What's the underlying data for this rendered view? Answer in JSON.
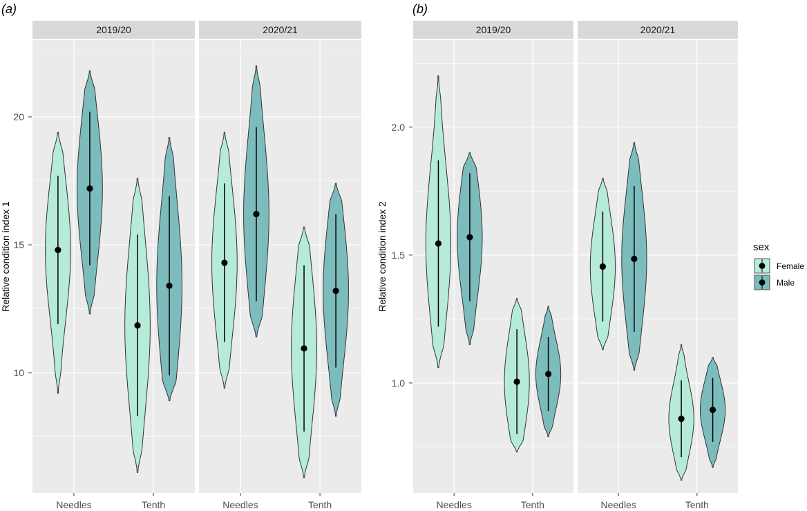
{
  "chart_data": [
    {
      "type": "violin",
      "tag": "(a)",
      "ylabel": "Relative condition index 1",
      "facets": [
        "2019/20",
        "2020/21"
      ],
      "categories": [
        "Needles",
        "Tenth"
      ],
      "groups": [
        "Female",
        "Male"
      ],
      "y_ticks": [
        10,
        15,
        20
      ],
      "ylim": [
        5.3,
        23.0
      ],
      "series": [
        {
          "facet": "2019/20",
          "category": "Needles",
          "group": "Female",
          "mean": 14.8,
          "lo": 11.9,
          "hi": 17.7,
          "min": 9.2,
          "max": 19.4
        },
        {
          "facet": "2019/20",
          "category": "Needles",
          "group": "Male",
          "mean": 17.2,
          "lo": 14.2,
          "hi": 20.2,
          "min": 12.3,
          "max": 21.8
        },
        {
          "facet": "2019/20",
          "category": "Tenth",
          "group": "Female",
          "mean": 11.85,
          "lo": 8.3,
          "hi": 15.4,
          "min": 6.1,
          "max": 17.6
        },
        {
          "facet": "2019/20",
          "category": "Tenth",
          "group": "Male",
          "mean": 13.4,
          "lo": 9.9,
          "hi": 16.9,
          "min": 8.9,
          "max": 19.2
        },
        {
          "facet": "2020/21",
          "category": "Needles",
          "group": "Female",
          "mean": 14.3,
          "lo": 11.2,
          "hi": 17.4,
          "min": 9.4,
          "max": 19.4
        },
        {
          "facet": "2020/21",
          "category": "Needles",
          "group": "Male",
          "mean": 16.2,
          "lo": 12.8,
          "hi": 19.6,
          "min": 11.4,
          "max": 22.0
        },
        {
          "facet": "2020/21",
          "category": "Tenth",
          "group": "Female",
          "mean": 10.95,
          "lo": 7.7,
          "hi": 14.2,
          "min": 5.9,
          "max": 15.7
        },
        {
          "facet": "2020/21",
          "category": "Tenth",
          "group": "Male",
          "mean": 13.2,
          "lo": 10.2,
          "hi": 16.2,
          "min": 8.3,
          "max": 17.4
        }
      ]
    },
    {
      "type": "violin",
      "tag": "(b)",
      "ylabel": "Relative condition index 2",
      "facets": [
        "2019/20",
        "2020/21"
      ],
      "categories": [
        "Needles",
        "Tenth"
      ],
      "groups": [
        "Female",
        "Male"
      ],
      "y_ticks": [
        "1.0",
        "1.5",
        "2.0"
      ],
      "ylim": [
        0.57,
        2.34
      ],
      "series": [
        {
          "facet": "2019/20",
          "category": "Needles",
          "group": "Female",
          "mean": 1.545,
          "lo": 1.22,
          "hi": 1.87,
          "min": 1.06,
          "max": 2.2
        },
        {
          "facet": "2019/20",
          "category": "Needles",
          "group": "Male",
          "mean": 1.57,
          "lo": 1.32,
          "hi": 1.82,
          "min": 1.15,
          "max": 1.9
        },
        {
          "facet": "2019/20",
          "category": "Tenth",
          "group": "Female",
          "mean": 1.005,
          "lo": 0.8,
          "hi": 1.21,
          "min": 0.73,
          "max": 1.33
        },
        {
          "facet": "2019/20",
          "category": "Tenth",
          "group": "Male",
          "mean": 1.035,
          "lo": 0.89,
          "hi": 1.18,
          "min": 0.79,
          "max": 1.3
        },
        {
          "facet": "2020/21",
          "category": "Needles",
          "group": "Female",
          "mean": 1.455,
          "lo": 1.24,
          "hi": 1.67,
          "min": 1.13,
          "max": 1.8
        },
        {
          "facet": "2020/21",
          "category": "Needles",
          "group": "Male",
          "mean": 1.485,
          "lo": 1.2,
          "hi": 1.77,
          "min": 1.05,
          "max": 1.94
        },
        {
          "facet": "2020/21",
          "category": "Tenth",
          "group": "Female",
          "mean": 0.86,
          "lo": 0.71,
          "hi": 1.01,
          "min": 0.62,
          "max": 1.15
        },
        {
          "facet": "2020/21",
          "category": "Tenth",
          "group": "Male",
          "mean": 0.895,
          "lo": 0.77,
          "hi": 1.02,
          "min": 0.67,
          "max": 1.1
        }
      ]
    }
  ],
  "legend": {
    "title": "sex",
    "items": [
      {
        "label": "Female",
        "color": "#b6ebd9"
      },
      {
        "label": "Male",
        "color": "#7dbcbc"
      }
    ]
  },
  "colors": {
    "panel_background": "#ebebeb",
    "strip_background": "#d9d9d9",
    "grid": "#ffffff",
    "violin_outline": "#333333",
    "point": "#000000"
  }
}
